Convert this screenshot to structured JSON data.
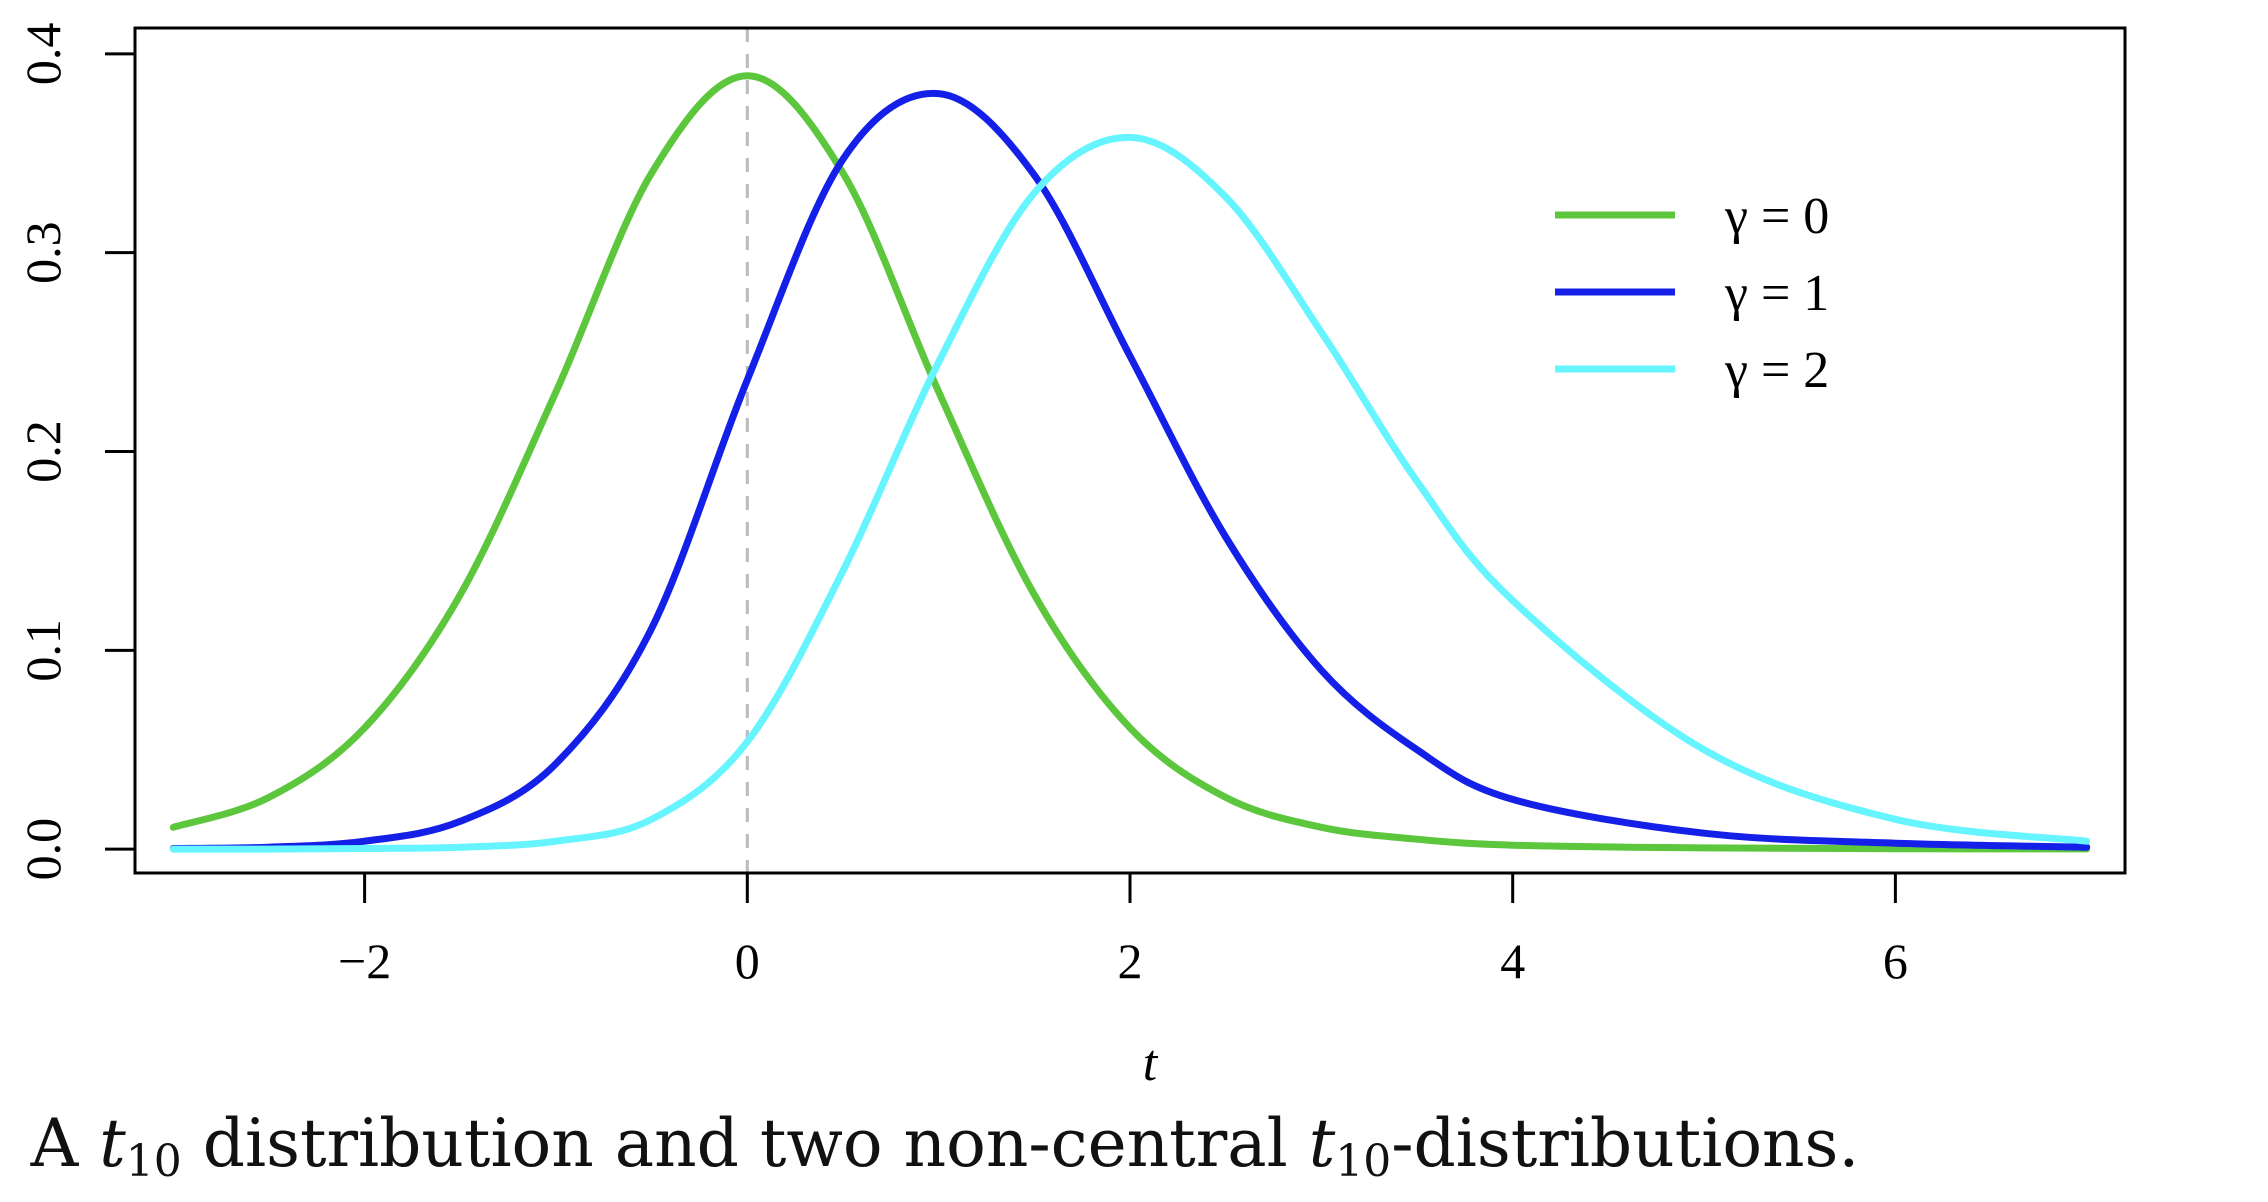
{
  "chart_data": {
    "type": "line",
    "xlabel": "t",
    "ylabel": "",
    "xlim": [
      -3.2,
      7.2
    ],
    "ylim": [
      -0.012,
      0.413
    ],
    "xticks": [
      -2,
      0,
      2,
      4,
      6
    ],
    "xtick_labels": [
      "−2",
      "0",
      "2",
      "4",
      "6"
    ],
    "yticks": [
      0.0,
      0.1,
      0.2,
      0.3,
      0.4
    ],
    "ytick_labels": [
      "0.0",
      "0.1",
      "0.2",
      "0.3",
      "0.4"
    ],
    "grid": false,
    "legend_position": "top-right",
    "vline": {
      "x": 0,
      "style": "dashed",
      "color": "#bbbbbb"
    },
    "series": [
      {
        "name": "γ = 0",
        "color": "#5cc63c",
        "x": [
          -3,
          -2.5,
          -2,
          -1.5,
          -1,
          -0.5,
          0,
          0.5,
          1,
          1.5,
          2,
          2.5,
          3,
          3.5,
          4,
          5,
          6,
          7
        ],
        "y": [
          0.011,
          0.026,
          0.061,
          0.128,
          0.23,
          0.34,
          0.389,
          0.34,
          0.23,
          0.128,
          0.061,
          0.026,
          0.011,
          0.005,
          0.002,
          0.0006,
          0.0002,
          0.0001
        ]
      },
      {
        "name": "γ = 1",
        "color": "#1420e8",
        "x": [
          -3,
          -2.5,
          -2,
          -1.5,
          -1,
          -0.5,
          0,
          0.5,
          1,
          1.5,
          2,
          2.5,
          3,
          3.5,
          4,
          5,
          6,
          7
        ],
        "y": [
          0.0003,
          0.001,
          0.004,
          0.014,
          0.043,
          0.111,
          0.236,
          0.347,
          0.38,
          0.339,
          0.248,
          0.157,
          0.09,
          0.05,
          0.025,
          0.008,
          0.003,
          0.001
        ]
      },
      {
        "name": "γ = 2",
        "color": "#66f4ff",
        "x": [
          -3,
          -2.5,
          -2,
          -1.5,
          -1,
          -0.5,
          0,
          0.5,
          1,
          1.5,
          2,
          2.5,
          3,
          3.5,
          4,
          5,
          6,
          7
        ],
        "y": [
          0.0,
          0.0,
          0.0003,
          0.001,
          0.004,
          0.015,
          0.054,
          0.14,
          0.245,
          0.33,
          0.358,
          0.328,
          0.26,
          0.185,
          0.125,
          0.05,
          0.015,
          0.004
        ]
      }
    ]
  },
  "caption": {
    "prefix": "A ",
    "t1": "t",
    "sub1": "10",
    "middle": " distribution and two non-central ",
    "t2": "t",
    "sub2": "10",
    "suffix": "-distributions."
  }
}
